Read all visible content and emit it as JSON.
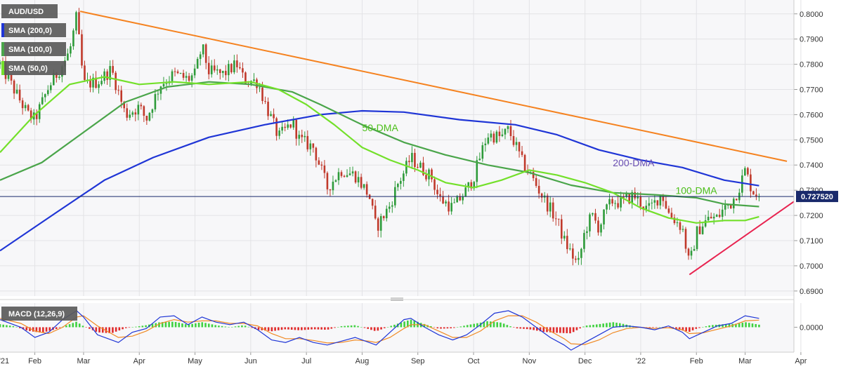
{
  "chart_data": {
    "type": "candlestick",
    "symbol": "AUD/USD",
    "current_price": 0.72752,
    "current_price_label": "0.727520",
    "price_axis": {
      "ylim": [
        0.688,
        0.8055
      ],
      "ticks": [
        "0.8000",
        "0.7900",
        "0.7800",
        "0.7700",
        "0.7600",
        "0.7500",
        "0.7400",
        "0.7300",
        "0.7200",
        "0.7100",
        "0.7000",
        "0.6900"
      ]
    },
    "macd_axis": {
      "ylim": [
        -0.0098,
        0.0095
      ],
      "ticks": [
        "0.0000"
      ]
    },
    "x_axis": {
      "range": [
        0,
        114
      ],
      "labels": [
        {
          "text": "'21",
          "x": -0.5
        },
        {
          "text": "Feb",
          "x": 5
        },
        {
          "text": "Mar",
          "x": 12
        },
        {
          "text": "Apr",
          "x": 20
        },
        {
          "text": "May",
          "x": 28
        },
        {
          "text": "Jun",
          "x": 36
        },
        {
          "text": "Jul",
          "x": 44
        },
        {
          "text": "Aug",
          "x": 52
        },
        {
          "text": "Sep",
          "x": 60
        },
        {
          "text": "Oct",
          "x": 68
        },
        {
          "text": "Nov",
          "x": 76
        },
        {
          "text": "Dec",
          "x": 84
        },
        {
          "text": "'22",
          "x": 92
        },
        {
          "text": "Feb",
          "x": 100
        },
        {
          "text": "Mar",
          "x": 107
        },
        {
          "text": "Apr",
          "x": 115
        }
      ]
    },
    "legend": [
      {
        "label": "AUD/USD"
      },
      {
        "label": "SMA (200,0)",
        "color": "#1f35d6"
      },
      {
        "label": "SMA (100,0)",
        "color": "#4aa54a"
      },
      {
        "label": "SMA (50,0)",
        "color": "#73e02a"
      }
    ],
    "macd_legend": "MACD (12,26,9)",
    "annotations": [
      {
        "text": "50-DMA",
        "x": 52,
        "y": 0.7535,
        "color": "#4cbf1a"
      },
      {
        "text": "200-DMA",
        "x": 88,
        "y": 0.7395,
        "color": "#6a4fb3"
      },
      {
        "text": "100-DMA",
        "x": 97,
        "y": 0.7285,
        "color": "#4cbf1a"
      }
    ],
    "trendlines": [
      {
        "name": "resistance",
        "color": "#f5821f",
        "points": [
          [
            11.5,
            0.801
          ],
          [
            113,
            0.7415
          ]
        ]
      },
      {
        "name": "support",
        "color": "#e8224f",
        "points": [
          [
            99,
            0.6965
          ],
          [
            114,
            0.7255
          ]
        ]
      }
    ],
    "ohlc_knots": [
      [
        0,
        0.78
      ],
      [
        2,
        0.77
      ],
      [
        4,
        0.76
      ],
      [
        5,
        0.758
      ],
      [
        7,
        0.771
      ],
      [
        9,
        0.78
      ],
      [
        10,
        0.785
      ],
      [
        11,
        0.799
      ],
      [
        12,
        0.772
      ],
      [
        14,
        0.773
      ],
      [
        16,
        0.778
      ],
      [
        18,
        0.76
      ],
      [
        20,
        0.763
      ],
      [
        21,
        0.758
      ],
      [
        23,
        0.772
      ],
      [
        25,
        0.776
      ],
      [
        27,
        0.774
      ],
      [
        28,
        0.776
      ],
      [
        29,
        0.787
      ],
      [
        30,
        0.777
      ],
      [
        32,
        0.776
      ],
      [
        34,
        0.78
      ],
      [
        35,
        0.774
      ],
      [
        37,
        0.773
      ],
      [
        38,
        0.765
      ],
      [
        40,
        0.751
      ],
      [
        42,
        0.757
      ],
      [
        43,
        0.75
      ],
      [
        45,
        0.747
      ],
      [
        47,
        0.731
      ],
      [
        49,
        0.738
      ],
      [
        51,
        0.736
      ],
      [
        53,
        0.728
      ],
      [
        54,
        0.715
      ],
      [
        56,
        0.724
      ],
      [
        57,
        0.732
      ],
      [
        58,
        0.737
      ],
      [
        59,
        0.743
      ],
      [
        60,
        0.74
      ],
      [
        62,
        0.735
      ],
      [
        63,
        0.727
      ],
      [
        65,
        0.723
      ],
      [
        67,
        0.73
      ],
      [
        68,
        0.735
      ],
      [
        69,
        0.744
      ],
      [
        70,
        0.752
      ],
      [
        72,
        0.751
      ],
      [
        73,
        0.754
      ],
      [
        74,
        0.748
      ],
      [
        75,
        0.741
      ],
      [
        76,
        0.737
      ],
      [
        78,
        0.727
      ],
      [
        80,
        0.718
      ],
      [
        81,
        0.71
      ],
      [
        82,
        0.705
      ],
      [
        83,
        0.7
      ],
      [
        84,
        0.714
      ],
      [
        85,
        0.72
      ],
      [
        86,
        0.715
      ],
      [
        87,
        0.722
      ],
      [
        88,
        0.726
      ],
      [
        89,
        0.725
      ],
      [
        91,
        0.728
      ],
      [
        92,
        0.725
      ],
      [
        93,
        0.722
      ],
      [
        94,
        0.725
      ],
      [
        95,
        0.729
      ],
      [
        96,
        0.721
      ],
      [
        98,
        0.715
      ],
      [
        99,
        0.7
      ],
      [
        100,
        0.713
      ],
      [
        101,
        0.717
      ],
      [
        102,
        0.719
      ],
      [
        103,
        0.719
      ],
      [
        104,
        0.723
      ],
      [
        105,
        0.725
      ],
      [
        106,
        0.73
      ],
      [
        107,
        0.738
      ],
      [
        108,
        0.73
      ],
      [
        109,
        0.7275
      ]
    ],
    "series": [
      {
        "name": "200-DMA",
        "color": "#1f35d6",
        "points": [
          [
            0,
            0.706
          ],
          [
            8,
            0.721
          ],
          [
            15,
            0.734
          ],
          [
            22,
            0.743
          ],
          [
            30,
            0.751
          ],
          [
            38,
            0.756
          ],
          [
            46,
            0.76
          ],
          [
            52,
            0.7615
          ],
          [
            58,
            0.761
          ],
          [
            66,
            0.758
          ],
          [
            74,
            0.756
          ],
          [
            80,
            0.752
          ],
          [
            86,
            0.746
          ],
          [
            92,
            0.742
          ],
          [
            98,
            0.739
          ],
          [
            104,
            0.734
          ],
          [
            109,
            0.7318
          ]
        ]
      },
      {
        "name": "100-DMA",
        "color": "#4aa54a",
        "points": [
          [
            0,
            0.734
          ],
          [
            6,
            0.741
          ],
          [
            12,
            0.753
          ],
          [
            18,
            0.765
          ],
          [
            24,
            0.771
          ],
          [
            30,
            0.773
          ],
          [
            36,
            0.772
          ],
          [
            42,
            0.769
          ],
          [
            46,
            0.764
          ],
          [
            52,
            0.756
          ],
          [
            58,
            0.749
          ],
          [
            64,
            0.744
          ],
          [
            70,
            0.74
          ],
          [
            76,
            0.737
          ],
          [
            82,
            0.732
          ],
          [
            88,
            0.729
          ],
          [
            94,
            0.7282
          ],
          [
            100,
            0.727
          ],
          [
            104,
            0.7245
          ],
          [
            109,
            0.7235
          ]
        ]
      },
      {
        "name": "50-DMA",
        "color": "#73e02a",
        "points": [
          [
            0,
            0.745
          ],
          [
            5,
            0.76
          ],
          [
            10,
            0.772
          ],
          [
            15,
            0.775
          ],
          [
            20,
            0.772
          ],
          [
            25,
            0.773
          ],
          [
            30,
            0.772
          ],
          [
            36,
            0.773
          ],
          [
            40,
            0.77
          ],
          [
            44,
            0.764
          ],
          [
            48,
            0.756
          ],
          [
            52,
            0.747
          ],
          [
            56,
            0.742
          ],
          [
            60,
            0.738
          ],
          [
            64,
            0.733
          ],
          [
            68,
            0.731
          ],
          [
            72,
            0.734
          ],
          [
            76,
            0.738
          ],
          [
            80,
            0.736
          ],
          [
            84,
            0.733
          ],
          [
            88,
            0.729
          ],
          [
            92,
            0.723
          ],
          [
            96,
            0.719
          ],
          [
            100,
            0.717
          ],
          [
            104,
            0.718
          ],
          [
            107,
            0.718
          ],
          [
            109,
            0.7195
          ]
        ]
      }
    ],
    "macd_histogram_knots": [
      [
        0,
        0.0012
      ],
      [
        2,
        0.0004
      ],
      [
        4,
        -0.0014
      ],
      [
        6,
        -0.0022
      ],
      [
        8,
        -0.0008
      ],
      [
        10,
        0.0012
      ],
      [
        11,
        0.0022
      ],
      [
        12,
        0.0004
      ],
      [
        14,
        -0.002
      ],
      [
        16,
        -0.0024
      ],
      [
        18,
        -0.0004
      ],
      [
        20,
        0.0004
      ],
      [
        21,
        0.0008
      ],
      [
        23,
        0.002
      ],
      [
        25,
        0.0022
      ],
      [
        27,
        0.001
      ],
      [
        29,
        0.002
      ],
      [
        31,
        0.0008
      ],
      [
        33,
        0.0
      ],
      [
        35,
        0.0008
      ],
      [
        37,
        -0.001
      ],
      [
        39,
        -0.0016
      ],
      [
        41,
        -0.0008
      ],
      [
        43,
        -0.0012
      ],
      [
        45,
        -0.0008
      ],
      [
        47,
        -0.001
      ],
      [
        49,
        0.0004
      ],
      [
        51,
        0.0008
      ],
      [
        53,
        -0.0008
      ],
      [
        54,
        -0.0016
      ],
      [
        56,
        0.0004
      ],
      [
        58,
        0.0022
      ],
      [
        59,
        0.003
      ],
      [
        61,
        0.0012
      ],
      [
        63,
        -0.0006
      ],
      [
        65,
        -0.0004
      ],
      [
        67,
        0.0008
      ],
      [
        69,
        0.0018
      ],
      [
        70,
        0.0024
      ],
      [
        72,
        0.0018
      ],
      [
        74,
        -0.0004
      ],
      [
        76,
        -0.0008
      ],
      [
        78,
        -0.0018
      ],
      [
        80,
        -0.0022
      ],
      [
        82,
        -0.0024
      ],
      [
        84,
        0.0006
      ],
      [
        86,
        0.0012
      ],
      [
        88,
        0.002
      ],
      [
        89,
        0.0016
      ],
      [
        91,
        0.0004
      ],
      [
        93,
        -0.0004
      ],
      [
        95,
        0.0002
      ],
      [
        97,
        -0.0008
      ],
      [
        99,
        -0.0018
      ],
      [
        100,
        -0.0006
      ],
      [
        102,
        0.0008
      ],
      [
        104,
        0.0012
      ],
      [
        106,
        0.0014
      ],
      [
        107,
        0.002
      ],
      [
        109,
        0.001
      ]
    ],
    "macd_knots": [
      [
        0,
        0.003
      ],
      [
        3,
        0.0
      ],
      [
        5,
        -0.004
      ],
      [
        7,
        -0.002
      ],
      [
        9,
        0.003
      ],
      [
        11,
        0.0065
      ],
      [
        12,
        0.004
      ],
      [
        14,
        -0.003
      ],
      [
        17,
        -0.006
      ],
      [
        19,
        -0.002
      ],
      [
        21,
        -0.0005
      ],
      [
        23,
        0.004
      ],
      [
        25,
        0.0045
      ],
      [
        27,
        0.001
      ],
      [
        29,
        0.004
      ],
      [
        31,
        0.002
      ],
      [
        33,
        0.001
      ],
      [
        35,
        0.002
      ],
      [
        37,
        -0.001
      ],
      [
        39,
        -0.005
      ],
      [
        41,
        -0.006
      ],
      [
        43,
        -0.004
      ],
      [
        45,
        -0.006
      ],
      [
        47,
        -0.007
      ],
      [
        49,
        -0.0055
      ],
      [
        51,
        -0.004
      ],
      [
        53,
        -0.006
      ],
      [
        54,
        -0.007
      ],
      [
        56,
        -0.002
      ],
      [
        58,
        0.003
      ],
      [
        59,
        0.0035
      ],
      [
        61,
        0.0
      ],
      [
        63,
        -0.003
      ],
      [
        65,
        -0.005
      ],
      [
        67,
        -0.003
      ],
      [
        69,
        0.001
      ],
      [
        71,
        0.0055
      ],
      [
        73,
        0.0065
      ],
      [
        75,
        0.004
      ],
      [
        77,
        0.0
      ],
      [
        79,
        -0.004
      ],
      [
        81,
        -0.007
      ],
      [
        82,
        -0.009
      ],
      [
        84,
        -0.006
      ],
      [
        86,
        -0.003
      ],
      [
        88,
        0.0
      ],
      [
        90,
        0.0005
      ],
      [
        92,
        0.0
      ],
      [
        94,
        -0.001
      ],
      [
        96,
        0.0005
      ],
      [
        98,
        -0.002
      ],
      [
        99,
        -0.0045
      ],
      [
        101,
        -0.002
      ],
      [
        103,
        0.0005
      ],
      [
        105,
        0.0015
      ],
      [
        107,
        0.0045
      ],
      [
        109,
        0.0035
      ]
    ],
    "signal_knots": [
      [
        0,
        0.0035
      ],
      [
        3,
        0.0015
      ],
      [
        5,
        -0.0015
      ],
      [
        7,
        -0.0025
      ],
      [
        9,
        0.0
      ],
      [
        11,
        0.004
      ],
      [
        12,
        0.0045
      ],
      [
        14,
        0.0005
      ],
      [
        17,
        -0.004
      ],
      [
        19,
        -0.0035
      ],
      [
        21,
        -0.0015
      ],
      [
        23,
        0.0015
      ],
      [
        25,
        0.003
      ],
      [
        27,
        0.002
      ],
      [
        29,
        0.0025
      ],
      [
        31,
        0.0025
      ],
      [
        33,
        0.0015
      ],
      [
        35,
        0.0015
      ],
      [
        37,
        0.0005
      ],
      [
        39,
        -0.0025
      ],
      [
        41,
        -0.0045
      ],
      [
        43,
        -0.0045
      ],
      [
        45,
        -0.0052
      ],
      [
        47,
        -0.0062
      ],
      [
        49,
        -0.006
      ],
      [
        51,
        -0.005
      ],
      [
        53,
        -0.0055
      ],
      [
        54,
        -0.006
      ],
      [
        56,
        -0.004
      ],
      [
        58,
        -0.0005
      ],
      [
        59,
        0.001
      ],
      [
        61,
        0.001
      ],
      [
        63,
        -0.0015
      ],
      [
        65,
        -0.004
      ],
      [
        67,
        -0.004
      ],
      [
        69,
        -0.0015
      ],
      [
        71,
        0.0025
      ],
      [
        73,
        0.0045
      ],
      [
        75,
        0.0045
      ],
      [
        77,
        0.002
      ],
      [
        79,
        -0.0015
      ],
      [
        81,
        -0.0045
      ],
      [
        82,
        -0.0065
      ],
      [
        84,
        -0.0068
      ],
      [
        86,
        -0.005
      ],
      [
        88,
        -0.0022
      ],
      [
        90,
        -0.0005
      ],
      [
        92,
        0.0
      ],
      [
        94,
        -0.0005
      ],
      [
        96,
        -0.0002
      ],
      [
        98,
        -0.001
      ],
      [
        99,
        -0.0025
      ],
      [
        101,
        -0.0022
      ],
      [
        103,
        -0.0008
      ],
      [
        105,
        0.0005
      ],
      [
        107,
        0.0025
      ],
      [
        109,
        0.0028
      ]
    ]
  }
}
